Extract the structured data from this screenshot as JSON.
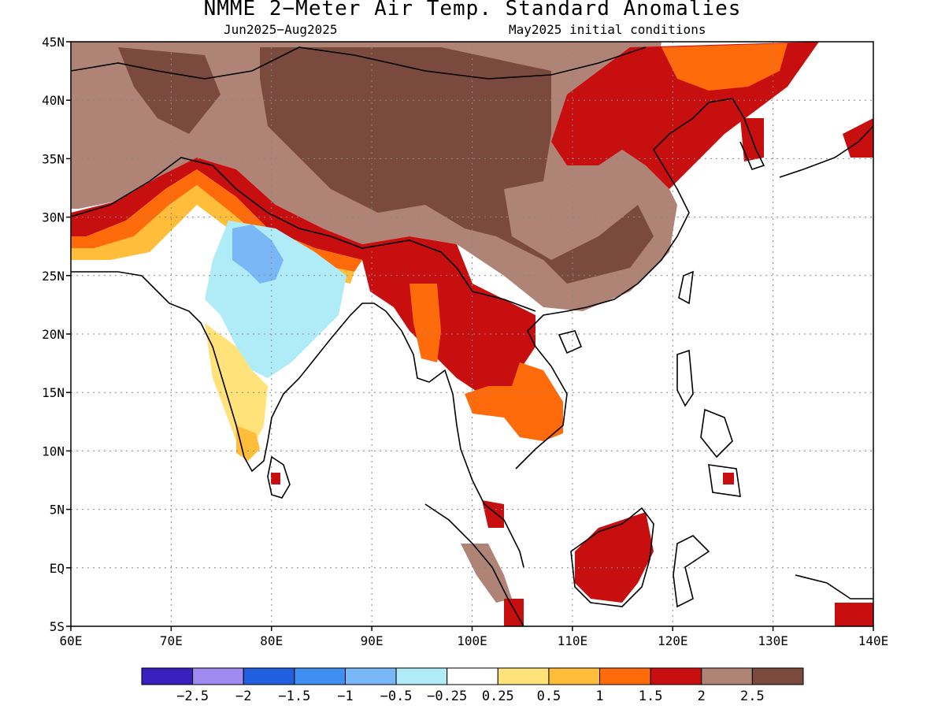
{
  "title": "NMME 2−Meter Air Temp. Standard Anomalies",
  "subtitle_left": "Jun2025−Aug2025",
  "subtitle_right": "May2025 initial conditions",
  "lat_ticks": [
    "45N",
    "40N",
    "35N",
    "30N",
    "25N",
    "20N",
    "15N",
    "10N",
    "5N",
    "EQ",
    "5S"
  ],
  "lon_ticks": [
    "60E",
    "70E",
    "80E",
    "90E",
    "100E",
    "110E",
    "120E",
    "130E",
    "140E"
  ],
  "extent": {
    "lon": [
      60,
      140
    ],
    "lat": [
      -5,
      45
    ]
  },
  "colorbar": {
    "colors": [
      "#3a1fbf",
      "#9f8af2",
      "#1f5fe0",
      "#3f8ff0",
      "#79b7f7",
      "#b0ecf8",
      "#ffffff",
      "#ffe37a",
      "#ffbd3a",
      "#ff6a0a",
      "#c80f0f",
      "#b08377",
      "#7a4a3e"
    ],
    "labels": [
      "−2.5",
      "−2",
      "−1.5",
      "−1",
      "−0.5",
      "−0.25",
      "0.25",
      "0.5",
      "1",
      "1.5",
      "2",
      "2.5"
    ]
  },
  "legend_title": ""
}
